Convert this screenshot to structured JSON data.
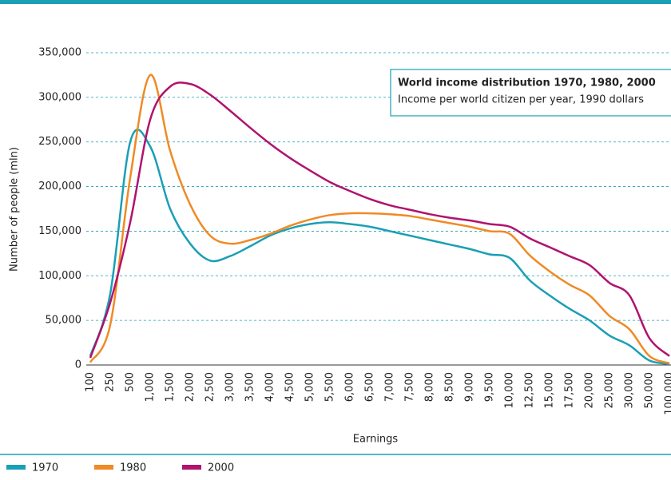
{
  "chart_data": {
    "type": "line",
    "annotation": {
      "title": "World income distribution 1970, 1980, 2000",
      "subtitle": "Income per world citizen per year, 1990 dollars"
    },
    "x_label": "Earnings",
    "y_label": "Number of people (mln)",
    "categories": [
      "100",
      "250",
      "500",
      "1,000",
      "1,500",
      "2,000",
      "2,500",
      "3,000",
      "3,500",
      "4,000",
      "4,500",
      "5,000",
      "5,500",
      "6,000",
      "6,500",
      "7,000",
      "7,500",
      "8,000",
      "8,500",
      "9,000",
      "9,500",
      "10,000",
      "12,500",
      "15,000",
      "17,500",
      "20,000",
      "25,000",
      "30,000",
      "50,000",
      "100,000"
    ],
    "series": [
      {
        "name": "1970",
        "color": "#1a9fb5",
        "values": [
          10000,
          80000,
          250000,
          245000,
          175000,
          136000,
          117000,
          122000,
          133000,
          145000,
          153000,
          158000,
          160000,
          158000,
          155000,
          150000,
          145000,
          140000,
          135000,
          130000,
          124000,
          120000,
          95000,
          78000,
          63000,
          50000,
          33000,
          22000,
          5000,
          1000
        ]
      },
      {
        "name": "1980",
        "color": "#f08a24",
        "values": [
          3000,
          45000,
          210000,
          325000,
          240000,
          180000,
          145000,
          136000,
          140000,
          147000,
          156000,
          163000,
          168000,
          170000,
          170000,
          169000,
          167000,
          163000,
          159000,
          155000,
          150000,
          147000,
          123000,
          105000,
          90000,
          78000,
          55000,
          40000,
          10000,
          2000
        ]
      },
      {
        "name": "2000",
        "color": "#b0136e",
        "values": [
          8000,
          70000,
          160000,
          275000,
          312000,
          315000,
          303000,
          285000,
          266000,
          248000,
          232000,
          218000,
          205000,
          195000,
          186000,
          179000,
          174000,
          169000,
          165000,
          162000,
          158000,
          155000,
          142000,
          132000,
          122000,
          112000,
          92000,
          78000,
          30000,
          10000
        ]
      }
    ],
    "ylim": [
      0,
      350000
    ],
    "yticks": [
      0,
      {
        "value": 50000,
        "label": "50,000"
      },
      {
        "value": 100000,
        "label": "100,000"
      },
      {
        "value": 150000,
        "label": "150,000"
      },
      {
        "value": 200000,
        "label": "200,000"
      },
      {
        "value": 250000,
        "label": "250,000"
      },
      {
        "value": 300000,
        "label": "300,000"
      },
      {
        "value": 350000,
        "label": "350,000"
      }
    ],
    "grid": true
  }
}
